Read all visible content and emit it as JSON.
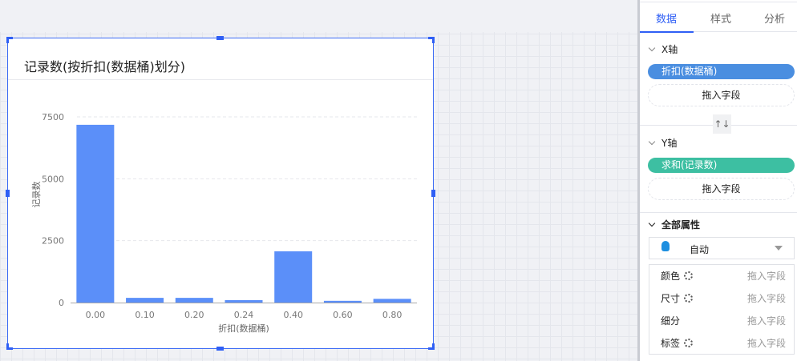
{
  "chart_card": {
    "title": "记录数(按折扣(数据桶)划分)"
  },
  "chart_data": {
    "type": "bar",
    "title": "记录数(按折扣(数据桶)划分)",
    "xlabel": "折扣(数据桶)",
    "ylabel": "记录数",
    "categories": [
      "0.00",
      "0.10",
      "0.20",
      "0.24",
      "0.40",
      "0.60",
      "0.80"
    ],
    "values": [
      7180,
      190,
      190,
      100,
      2070,
      70,
      150
    ],
    "yticks": [
      "0",
      "2500",
      "5000",
      "7500"
    ],
    "ylim": [
      0,
      7500
    ],
    "grid": true,
    "color": "#5b8ff9"
  },
  "panel": {
    "tabs": [
      {
        "label": "数据"
      },
      {
        "label": "样式"
      },
      {
        "label": "分析"
      }
    ],
    "x_axis": {
      "label": "X轴",
      "field": "折扣(数据桶)",
      "drop": "拖入字段",
      "color": "#4a8ee0"
    },
    "swap_icon": "↑↓",
    "y_axis": {
      "label": "Y轴",
      "field": "求和(记录数)",
      "drop": "拖入字段",
      "color": "#3dbfa2"
    },
    "all_props": {
      "label": "全部属性",
      "mark_type": "自动",
      "rows": [
        {
          "label": "颜色",
          "gear": true,
          "drop": "拖入字段"
        },
        {
          "label": "尺寸",
          "gear": true,
          "drop": "拖入字段"
        },
        {
          "label": "细分",
          "gear": false,
          "drop": "拖入字段"
        },
        {
          "label": "标签",
          "gear": true,
          "drop": "拖入字段"
        }
      ]
    }
  }
}
